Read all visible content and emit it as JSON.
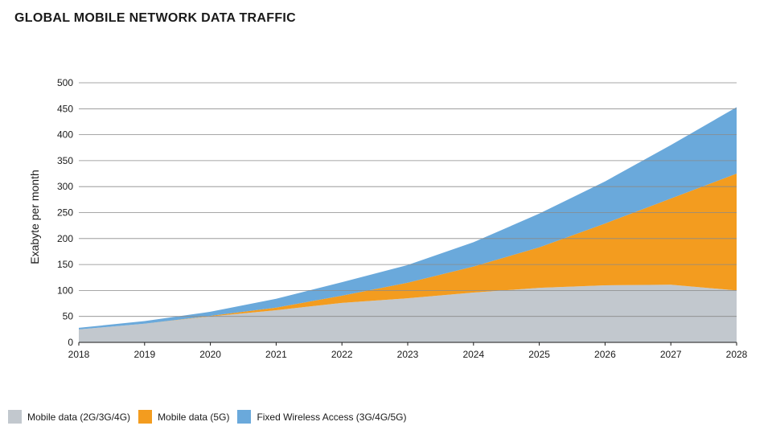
{
  "title": "GLOBAL MOBILE NETWORK DATA TRAFFIC",
  "chart_data": {
    "type": "area",
    "stacked": true,
    "title": "GLOBAL MOBILE NETWORK DATA TRAFFIC",
    "xlabel": "",
    "ylabel": "Exabyte per month",
    "x": [
      "2018",
      "2019",
      "2020",
      "2021",
      "2022",
      "2023",
      "2024",
      "2025",
      "2026",
      "2027",
      "2028"
    ],
    "ylim": [
      0,
      500
    ],
    "yticks": [
      "0",
      "50",
      "100",
      "150",
      "200",
      "250",
      "300",
      "350",
      "400",
      "450",
      "500"
    ],
    "grid": true,
    "legend_position": "bottom-left",
    "series": [
      {
        "name": "Mobile data (2G/3G/4G)",
        "color": "#c2c8ce",
        "values": [
          25,
          36,
          50,
          62,
          76,
          85,
          96,
          105,
          110,
          111,
          100
        ]
      },
      {
        "name": "Mobile data (5G)",
        "color": "#f39c1f",
        "values": [
          0,
          0,
          1,
          5,
          14,
          30,
          50,
          78,
          119,
          166,
          225
        ]
      },
      {
        "name": "Fixed Wireless Access (3G/4G/5G)",
        "color": "#6aa9db",
        "values": [
          3,
          5,
          8,
          17,
          26,
          34,
          47,
          65,
          81,
          103,
          128
        ]
      }
    ]
  }
}
